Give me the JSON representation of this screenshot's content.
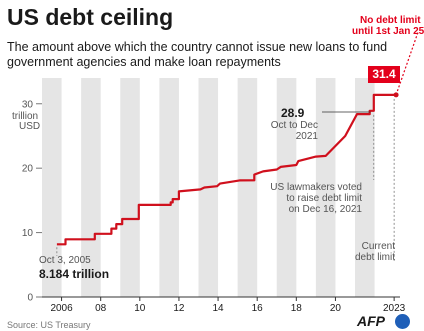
{
  "header": {
    "title": "US debt ceiling",
    "subtitle_line1": "The amount above which the country cannot issue new loans to fund",
    "subtitle_line2": "government agencies and make loan repayments"
  },
  "y_unit_line1": "trillion",
  "y_unit_line2": "USD",
  "annotations": {
    "no_limit_line1": "No debt limit",
    "no_limit_line2": "until 1st Jan 25",
    "current_value": "31.4",
    "peak_value": "28.9",
    "peak_note_line1": "Oct to Dec",
    "peak_note_line2": "2021",
    "vote_line1": "US lawmakers voted",
    "vote_line2": "to raise debt limit",
    "vote_line3": "on Dec 16, 2021",
    "current_line1": "Current",
    "current_line2": "debt limit",
    "start_date": "Oct 3, 2005",
    "start_value": "8.184 trillion"
  },
  "footer": {
    "source": "Source: US Treasury",
    "logo": "AFP"
  },
  "colors": {
    "line": "#d0101d",
    "accent": "#e3001b",
    "band": "#e5e5e5",
    "text": "#1a1a1a",
    "muted": "#4a4a4a",
    "axis": "#555555"
  },
  "chart_data": {
    "type": "line",
    "title": "US debt ceiling",
    "xlabel": "",
    "ylabel": "trillion USD",
    "xlim": [
      2005,
      2023.3
    ],
    "ylim": [
      0,
      34
    ],
    "x_ticks": [
      2006,
      2008,
      2010,
      2012,
      2014,
      2016,
      2018,
      2020,
      2023
    ],
    "x_tick_labels": [
      "2006",
      "08",
      "10",
      "12",
      "14",
      "16",
      "18",
      "20",
      "2023"
    ],
    "y_ticks": [
      0,
      10,
      20,
      30
    ],
    "y_tick_labels": [
      "0",
      "10",
      "20",
      "30"
    ],
    "grid": "alternating vertical bands",
    "series": [
      {
        "x": [
          2005.76,
          2006.2,
          2006.2,
          2007.7,
          2007.7,
          2008.55,
          2008.55,
          2008.8,
          2008.8,
          2009.1,
          2009.1,
          2009.95,
          2009.95,
          2011.58,
          2011.58,
          2011.68,
          2011.68,
          2012.0,
          2012.0,
          2013.1,
          2013.3,
          2013.95,
          2014.1,
          2015.1,
          2015.85,
          2015.85,
          2016.3,
          2017.0,
          2017.2,
          2018.0,
          2018.1,
          2019.0,
          2019.5,
          2020.5,
          2021.1,
          2021.75,
          2021.75,
          2021.96,
          2021.96,
          2023.1
        ],
        "y": [
          8.184,
          8.184,
          8.965,
          8.965,
          9.815,
          9.815,
          10.615,
          10.615,
          11.315,
          11.315,
          12.104,
          12.104,
          14.294,
          14.294,
          14.694,
          14.694,
          15.194,
          15.194,
          16.394,
          16.7,
          17.0,
          17.2,
          17.6,
          18.1,
          18.113,
          19.0,
          19.5,
          19.8,
          20.2,
          20.5,
          21.1,
          21.8,
          21.9,
          25.0,
          28.4,
          28.4,
          28.9,
          28.9,
          31.381,
          31.381
        ]
      }
    ]
  }
}
